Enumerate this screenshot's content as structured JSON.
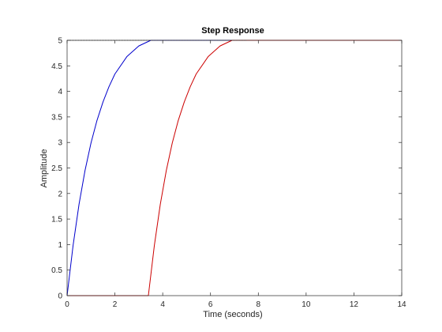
{
  "chart_data": {
    "type": "line",
    "title": "Step Response",
    "xlabel": "Time (seconds)",
    "ylabel": "Amplitude",
    "xlim": [
      0,
      14
    ],
    "ylim": [
      0,
      5
    ],
    "x_ticks": [
      0,
      2,
      4,
      6,
      8,
      10,
      12,
      14
    ],
    "x_tick_labels": [
      "0",
      "2",
      "4",
      "6",
      "8",
      "10",
      "12",
      "14"
    ],
    "y_ticks": [
      0,
      0.5,
      1,
      1.5,
      2,
      2.5,
      3,
      3.5,
      4,
      4.5,
      5
    ],
    "y_tick_labels": [
      "0",
      "0.5",
      "1",
      "1.5",
      "2",
      "2.5",
      "3",
      "3.5",
      "4",
      "4.5",
      "5"
    ],
    "grid": false,
    "series": [
      {
        "color": "#0000cc",
        "x": [
          0,
          0.25,
          0.5,
          0.75,
          1,
          1.25,
          1.5,
          1.75,
          2,
          2.5,
          3,
          3.5,
          4,
          4.5,
          5,
          5.5,
          6,
          7,
          8,
          9,
          10,
          12,
          14
        ],
        "y": [
          0,
          0.98,
          1.79,
          2.45,
          2.99,
          3.43,
          3.79,
          4.09,
          4.34,
          4.68,
          4.89,
          5.01,
          5.08,
          5.11,
          5.12,
          5.11,
          5.1,
          5.06,
          5.03,
          5.01,
          5.0,
          5.0,
          5.0
        ]
      },
      {
        "color": "#cc0000",
        "x": [
          0,
          3.4,
          3.65,
          3.9,
          4.15,
          4.4,
          4.65,
          4.9,
          5.15,
          5.4,
          5.9,
          6.4,
          6.9,
          7.4,
          7.9,
          8.4,
          8.9,
          9.4,
          10,
          11,
          12,
          14
        ],
        "y": [
          0,
          0,
          0.98,
          1.79,
          2.45,
          2.99,
          3.43,
          3.79,
          4.09,
          4.34,
          4.68,
          4.89,
          5.01,
          5.08,
          5.11,
          5.12,
          5.11,
          5.1,
          5.06,
          5.02,
          5.0,
          5.0
        ]
      }
    ],
    "reference_line": {
      "y": 5,
      "color": "#000000"
    }
  }
}
